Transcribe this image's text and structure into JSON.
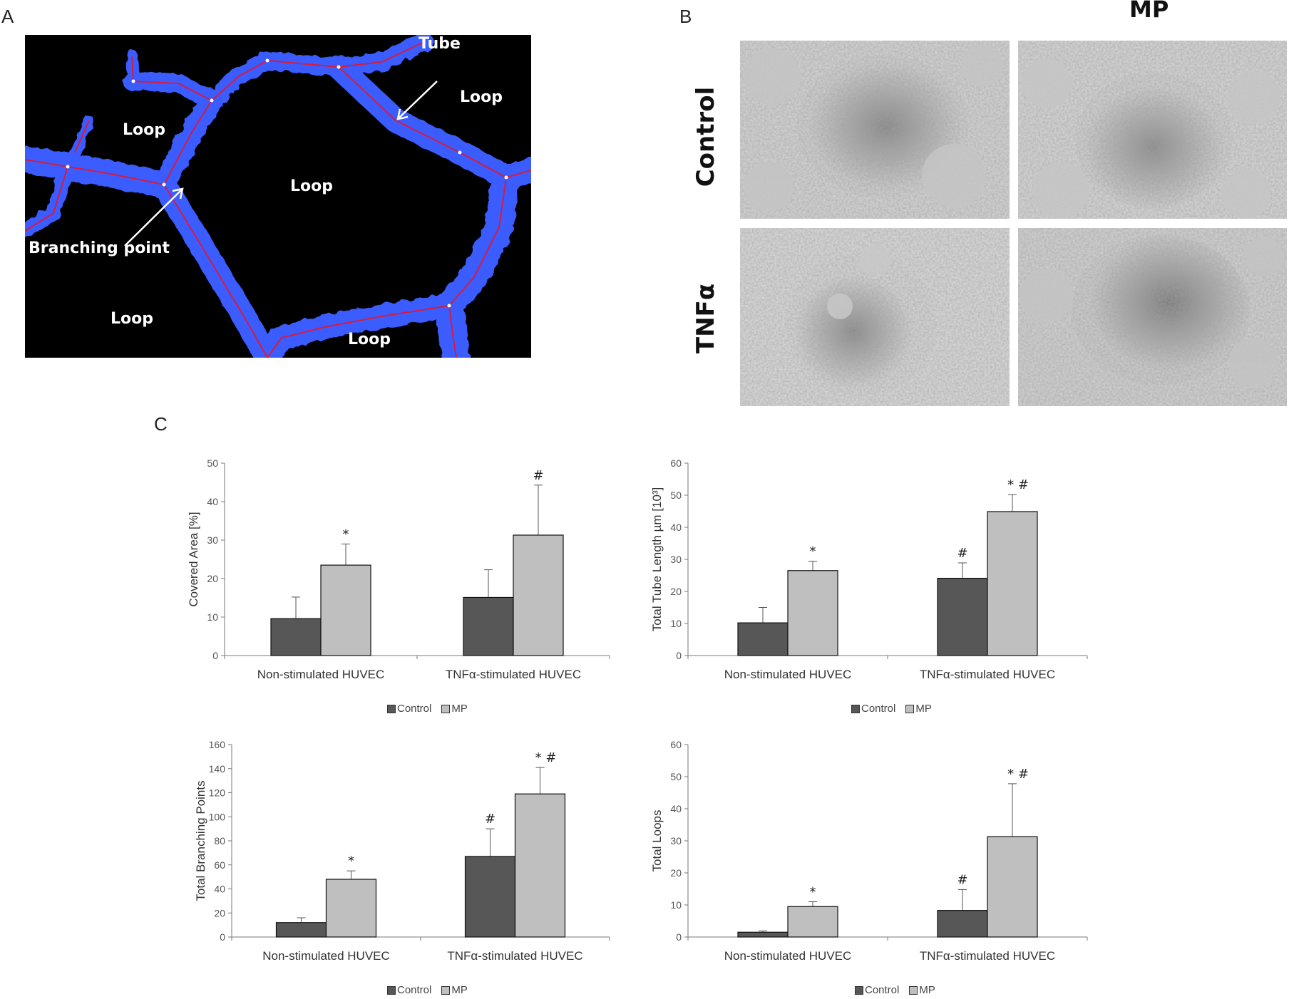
{
  "panels": {
    "a": "A",
    "b": "B",
    "c": "C"
  },
  "panel_a": {
    "labels": {
      "tube": "Tube",
      "branching_point": "Branching point",
      "loops": [
        "Loop",
        "Loop",
        "Loop",
        "Loop",
        "Loop"
      ]
    },
    "colors": {
      "background": "#000000",
      "tube": "#3a5bff",
      "skeleton": "#d81b3c"
    }
  },
  "panel_b": {
    "columns": [
      "",
      "MP"
    ],
    "rows": [
      "Control",
      "TNFα"
    ]
  },
  "legend": {
    "control": "Control",
    "mp": "MP"
  },
  "colors": {
    "control": "#575757",
    "mp": "#bfbfbf"
  },
  "chart_data": [
    {
      "type": "bar",
      "categories": [
        "Non-stimulated HUVEC",
        "TNFα-stimulated HUVEC"
      ],
      "series": [
        {
          "name": "Control",
          "values": [
            9.6,
            15.1
          ],
          "errors": [
            5.6,
            7.2
          ],
          "marks": [
            "",
            ""
          ]
        },
        {
          "name": "MP",
          "values": [
            23.5,
            31.3
          ],
          "errors": [
            5.5,
            13.0
          ],
          "marks": [
            "*",
            "#"
          ]
        }
      ],
      "ylabel": "Covered Area [%]",
      "ylim": [
        0,
        50
      ],
      "yticks": [
        0,
        10,
        20,
        30,
        40,
        50
      ]
    },
    {
      "type": "bar",
      "categories": [
        "Non-stimulated HUVEC",
        "TNFα-stimulated HUVEC"
      ],
      "series": [
        {
          "name": "Control",
          "values": [
            10.2,
            24.1
          ],
          "errors": [
            4.8,
            4.8
          ],
          "marks": [
            "",
            "#"
          ]
        },
        {
          "name": "MP",
          "values": [
            26.5,
            44.9
          ],
          "errors": [
            2.9,
            5.3
          ],
          "marks": [
            "*",
            "* #"
          ]
        }
      ],
      "ylabel": "Total Tube Length µm [10³]",
      "ylim": [
        0,
        60
      ],
      "yticks": [
        0,
        10,
        20,
        30,
        40,
        50,
        60
      ]
    },
    {
      "type": "bar",
      "categories": [
        "Non-stimulated HUVEC",
        "TNFα-stimulated HUVEC"
      ],
      "series": [
        {
          "name": "Control",
          "values": [
            12,
            67
          ],
          "errors": [
            4,
            23
          ],
          "marks": [
            "",
            "#"
          ]
        },
        {
          "name": "MP",
          "values": [
            48,
            119
          ],
          "errors": [
            7,
            22
          ],
          "marks": [
            "*",
            "* #"
          ]
        }
      ],
      "ylabel": "Total Branching Points",
      "ylim": [
        0,
        160
      ],
      "yticks": [
        0,
        20,
        40,
        60,
        80,
        100,
        120,
        140,
        160
      ]
    },
    {
      "type": "bar",
      "categories": [
        "Non-stimulated HUVEC",
        "TNFα-stimulated HUVEC"
      ],
      "series": [
        {
          "name": "Control",
          "values": [
            1.5,
            8.3
          ],
          "errors": [
            0.4,
            6.5
          ],
          "marks": [
            "",
            "#"
          ]
        },
        {
          "name": "MP",
          "values": [
            9.5,
            31.3
          ],
          "errors": [
            1.5,
            16.5
          ],
          "marks": [
            "*",
            "* #"
          ]
        }
      ],
      "ylabel": "Total Loops",
      "ylim": [
        0,
        60
      ],
      "yticks": [
        0,
        10,
        20,
        30,
        40,
        50,
        60
      ]
    }
  ]
}
